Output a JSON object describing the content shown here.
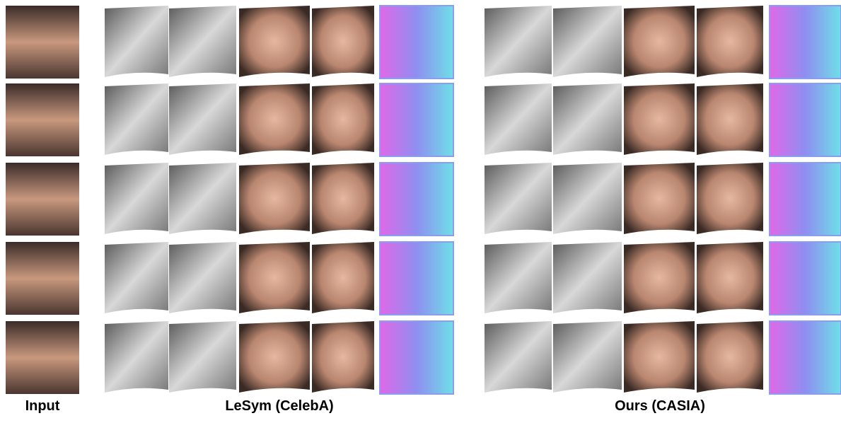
{
  "figure": {
    "column_labels": [
      "Input",
      "LeSym (CelebA)",
      "Ours (CASIA)"
    ]
  }
}
